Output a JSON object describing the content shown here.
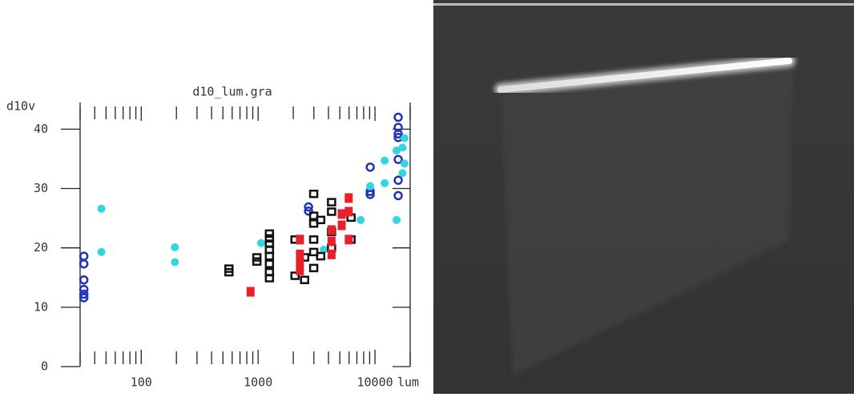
{
  "chart_data": {
    "type": "scatter",
    "title": "d10_lum.gra",
    "x_label": "lum",
    "y_label": "d10v",
    "xscale": "log",
    "xlim": [
      30,
      20000
    ],
    "ylim": [
      0,
      44.5
    ],
    "xticks": [
      100,
      1000,
      10000
    ],
    "xminor_ticks": [
      30,
      40,
      50,
      60,
      70,
      80,
      90,
      200,
      300,
      400,
      500,
      600,
      700,
      800,
      900,
      2000,
      3000,
      4000,
      5000,
      6000,
      7000,
      8000,
      9000,
      20000
    ],
    "yticks": [
      0,
      10,
      20,
      30,
      40
    ],
    "series": [
      {
        "color": "#2233bb",
        "marker": "open-circle",
        "x": [
          32.3,
          32.3,
          32.3,
          32.3,
          32.3,
          32.3,
          9100,
          9100,
          9100,
          15800,
          15800,
          15800,
          15800,
          15800,
          15800,
          15800,
          2700,
          2700
        ],
        "values": [
          18.6,
          17.3,
          14.6,
          13.0,
          12.2,
          11.6,
          33.6,
          29.5,
          29.0,
          42.0,
          40.3,
          39.2,
          38.6,
          34.9,
          31.4,
          28.8,
          26.9,
          26.2
        ]
      },
      {
        "color": "#33d6dd",
        "marker": "filled-circle",
        "x": [
          45.6,
          45.6,
          194,
          194,
          1060,
          3640,
          7530,
          9100,
          12100,
          12100,
          15300,
          15300,
          17900,
          17900,
          17200,
          17200
        ],
        "values": [
          26.6,
          19.3,
          20.1,
          17.6,
          20.8,
          19.7,
          24.7,
          30.4,
          30.9,
          34.7,
          24.7,
          36.4,
          38.5,
          34.2,
          32.6,
          36.9
        ]
      },
      {
        "color": "#111111",
        "marker": "open-square",
        "x": [
          563,
          563,
          976,
          976,
          1250,
          1250,
          1250,
          1250,
          1250,
          1250,
          1250,
          1250,
          2070,
          2070,
          2500,
          2500,
          2990,
          2990,
          2990,
          2990,
          2990,
          2990,
          3430,
          3430,
          4250,
          4250,
          4250,
          4250,
          6240,
          6240
        ],
        "values": [
          16.5,
          15.9,
          18.4,
          17.7,
          22.4,
          21.6,
          20.7,
          19.7,
          18.6,
          17.3,
          15.9,
          14.9,
          21.4,
          15.3,
          14.6,
          18.4,
          29.1,
          25.4,
          24.1,
          21.4,
          19.3,
          16.6,
          24.7,
          18.6,
          27.7,
          26.1,
          22.7,
          20.0,
          25.1,
          21.4
        ]
      },
      {
        "color": "#e8202a",
        "marker": "filled-square",
        "x": [
          862,
          2280,
          2280,
          2280,
          2280,
          4250,
          4250,
          4250,
          5190,
          5190,
          5960,
          5960,
          5960
        ],
        "values": [
          12.6,
          21.4,
          18.9,
          17.6,
          16.2,
          23.0,
          21.1,
          18.9,
          25.7,
          23.8,
          28.4,
          26.1,
          21.4
        ]
      }
    ]
  }
}
